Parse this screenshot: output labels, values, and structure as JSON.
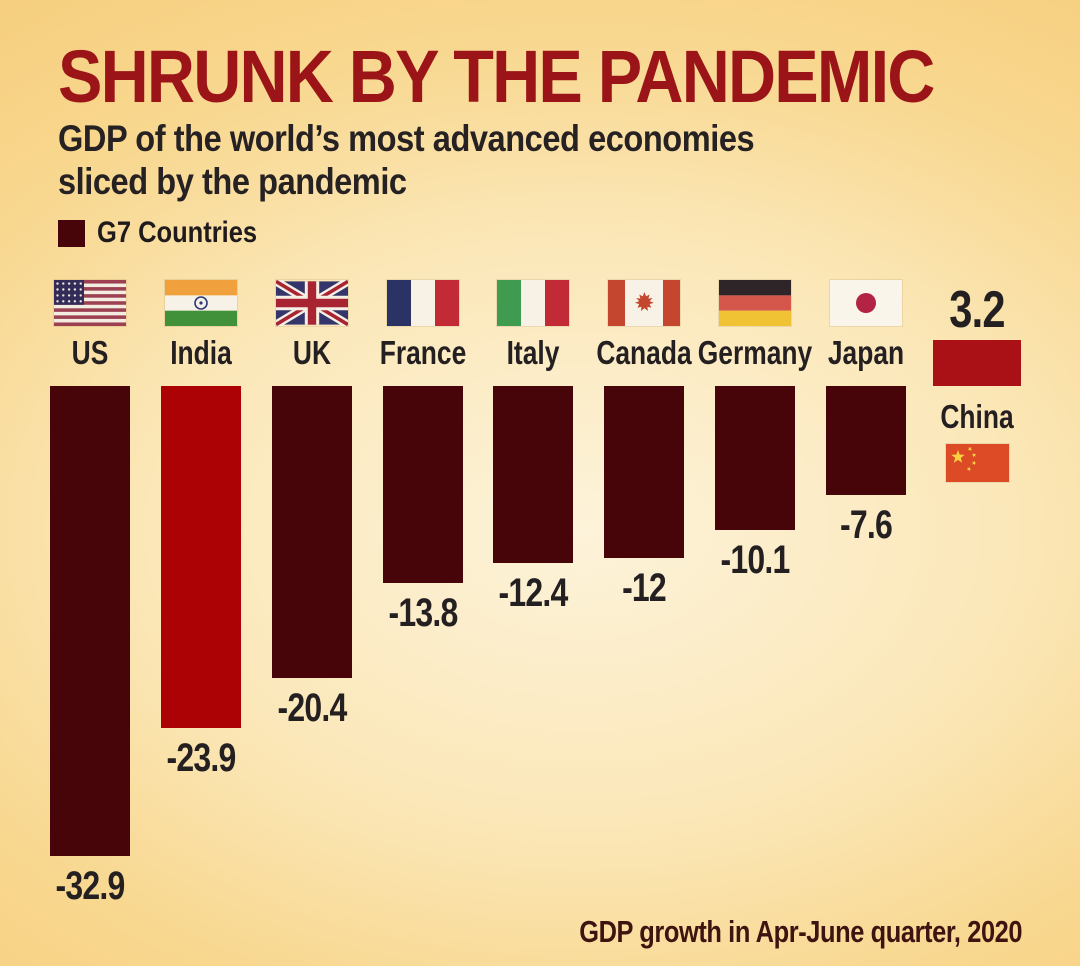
{
  "header": {
    "title": "SHRUNK BY THE PANDEMIC",
    "subtitle_line1": "GDP of the world’s most advanced economies",
    "subtitle_line2": "sliced by the pandemic"
  },
  "legend": {
    "label": "G7 Countries",
    "swatch_color": "#470409"
  },
  "footer": {
    "note": "GDP growth in Apr-June quarter, 2020"
  },
  "colors": {
    "background_edge": "#f6cd7c",
    "background_center": "#fdf3da",
    "title_text": "#9b1418",
    "dark_text": "#241f20",
    "g7_bar": "#470409",
    "india_bar": "#ad0205",
    "china_bar": "#a91117",
    "footer_text": "#3f1410"
  },
  "chart_data": {
    "type": "bar",
    "title": "SHRUNK BY THE PANDEMIC",
    "subtitle": "GDP of the world's most advanced economies sliced by the pandemic",
    "note": "GDP growth in Apr-June quarter, 2020",
    "unit": "% GDP growth, Apr-June quarter 2020",
    "orientation": "vertical",
    "baseline": 0,
    "grid": false,
    "legend_position": "top-left",
    "legend": [
      {
        "label": "G7 Countries",
        "color": "#470409"
      }
    ],
    "categories": [
      "US",
      "India",
      "UK",
      "France",
      "Italy",
      "Canada",
      "Germany",
      "Japan",
      "China"
    ],
    "values": [
      -32.9,
      -23.9,
      -20.4,
      -13.8,
      -12.4,
      -12,
      -10.1,
      -7.6,
      3.2
    ],
    "value_labels": [
      "-32.9",
      "-23.9",
      "-20.4",
      "-13.8",
      "-12.4",
      "-12",
      "-10.1",
      "-7.6",
      "3.2"
    ],
    "bar_colors": [
      "#470409",
      "#ad0205",
      "#470409",
      "#470409",
      "#470409",
      "#470409",
      "#470409",
      "#470409",
      "#a91117"
    ],
    "flags": [
      "us",
      "in",
      "gb",
      "fr",
      "it",
      "ca",
      "de",
      "jp",
      "cn"
    ],
    "g7_member": [
      true,
      false,
      true,
      true,
      true,
      true,
      true,
      true,
      false
    ],
    "ylim": [
      -35,
      5
    ]
  }
}
